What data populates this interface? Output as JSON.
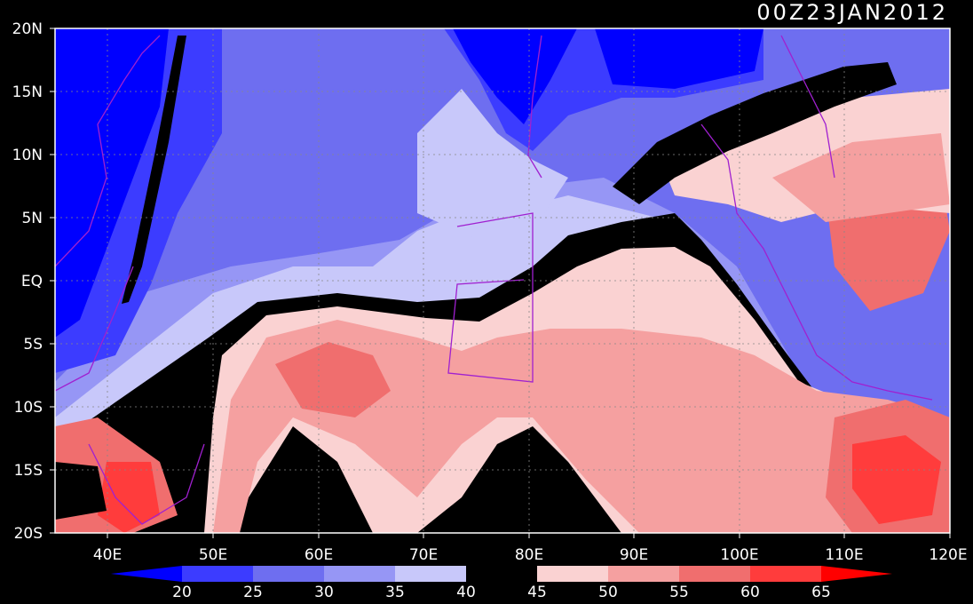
{
  "title": "00Z23JAN2012",
  "map": {
    "lon_range": [
      35,
      120
    ],
    "lat_range": [
      -20,
      20
    ],
    "lon_labels": [
      "40E",
      "50E",
      "60E",
      "70E",
      "80E",
      "90E",
      "100E",
      "110E",
      "120E"
    ],
    "lat_labels": [
      "20N",
      "15N",
      "10N",
      "5N",
      "EQ",
      "5S",
      "10S",
      "15S",
      "20S"
    ],
    "grid": "dotted"
  },
  "colorbar": {
    "labels": [
      "20",
      "25",
      "30",
      "35",
      "40",
      "45",
      "50",
      "55",
      "60",
      "65"
    ],
    "colors": [
      "#0000ff",
      "#3c3cff",
      "#6e6ef0",
      "#9696f5",
      "#c8c8fa",
      "#000000",
      "#fad2d2",
      "#f5a0a0",
      "#f06e6e",
      "#ff3c3c",
      "#ff0000"
    ]
  },
  "field_colors": {
    "lt20": "#0000ff",
    "c20_25": "#3c3cff",
    "c25_30": "#6e6ef0",
    "c30_35": "#9696f5",
    "c35_40": "#c8c8fa",
    "c40_45": "#000000",
    "c45_50": "#fad2d2",
    "c50_55": "#f5a0a0",
    "c55_60": "#f06e6e",
    "c60_65": "#ff3c3c",
    "coast": "#a020d0"
  }
}
